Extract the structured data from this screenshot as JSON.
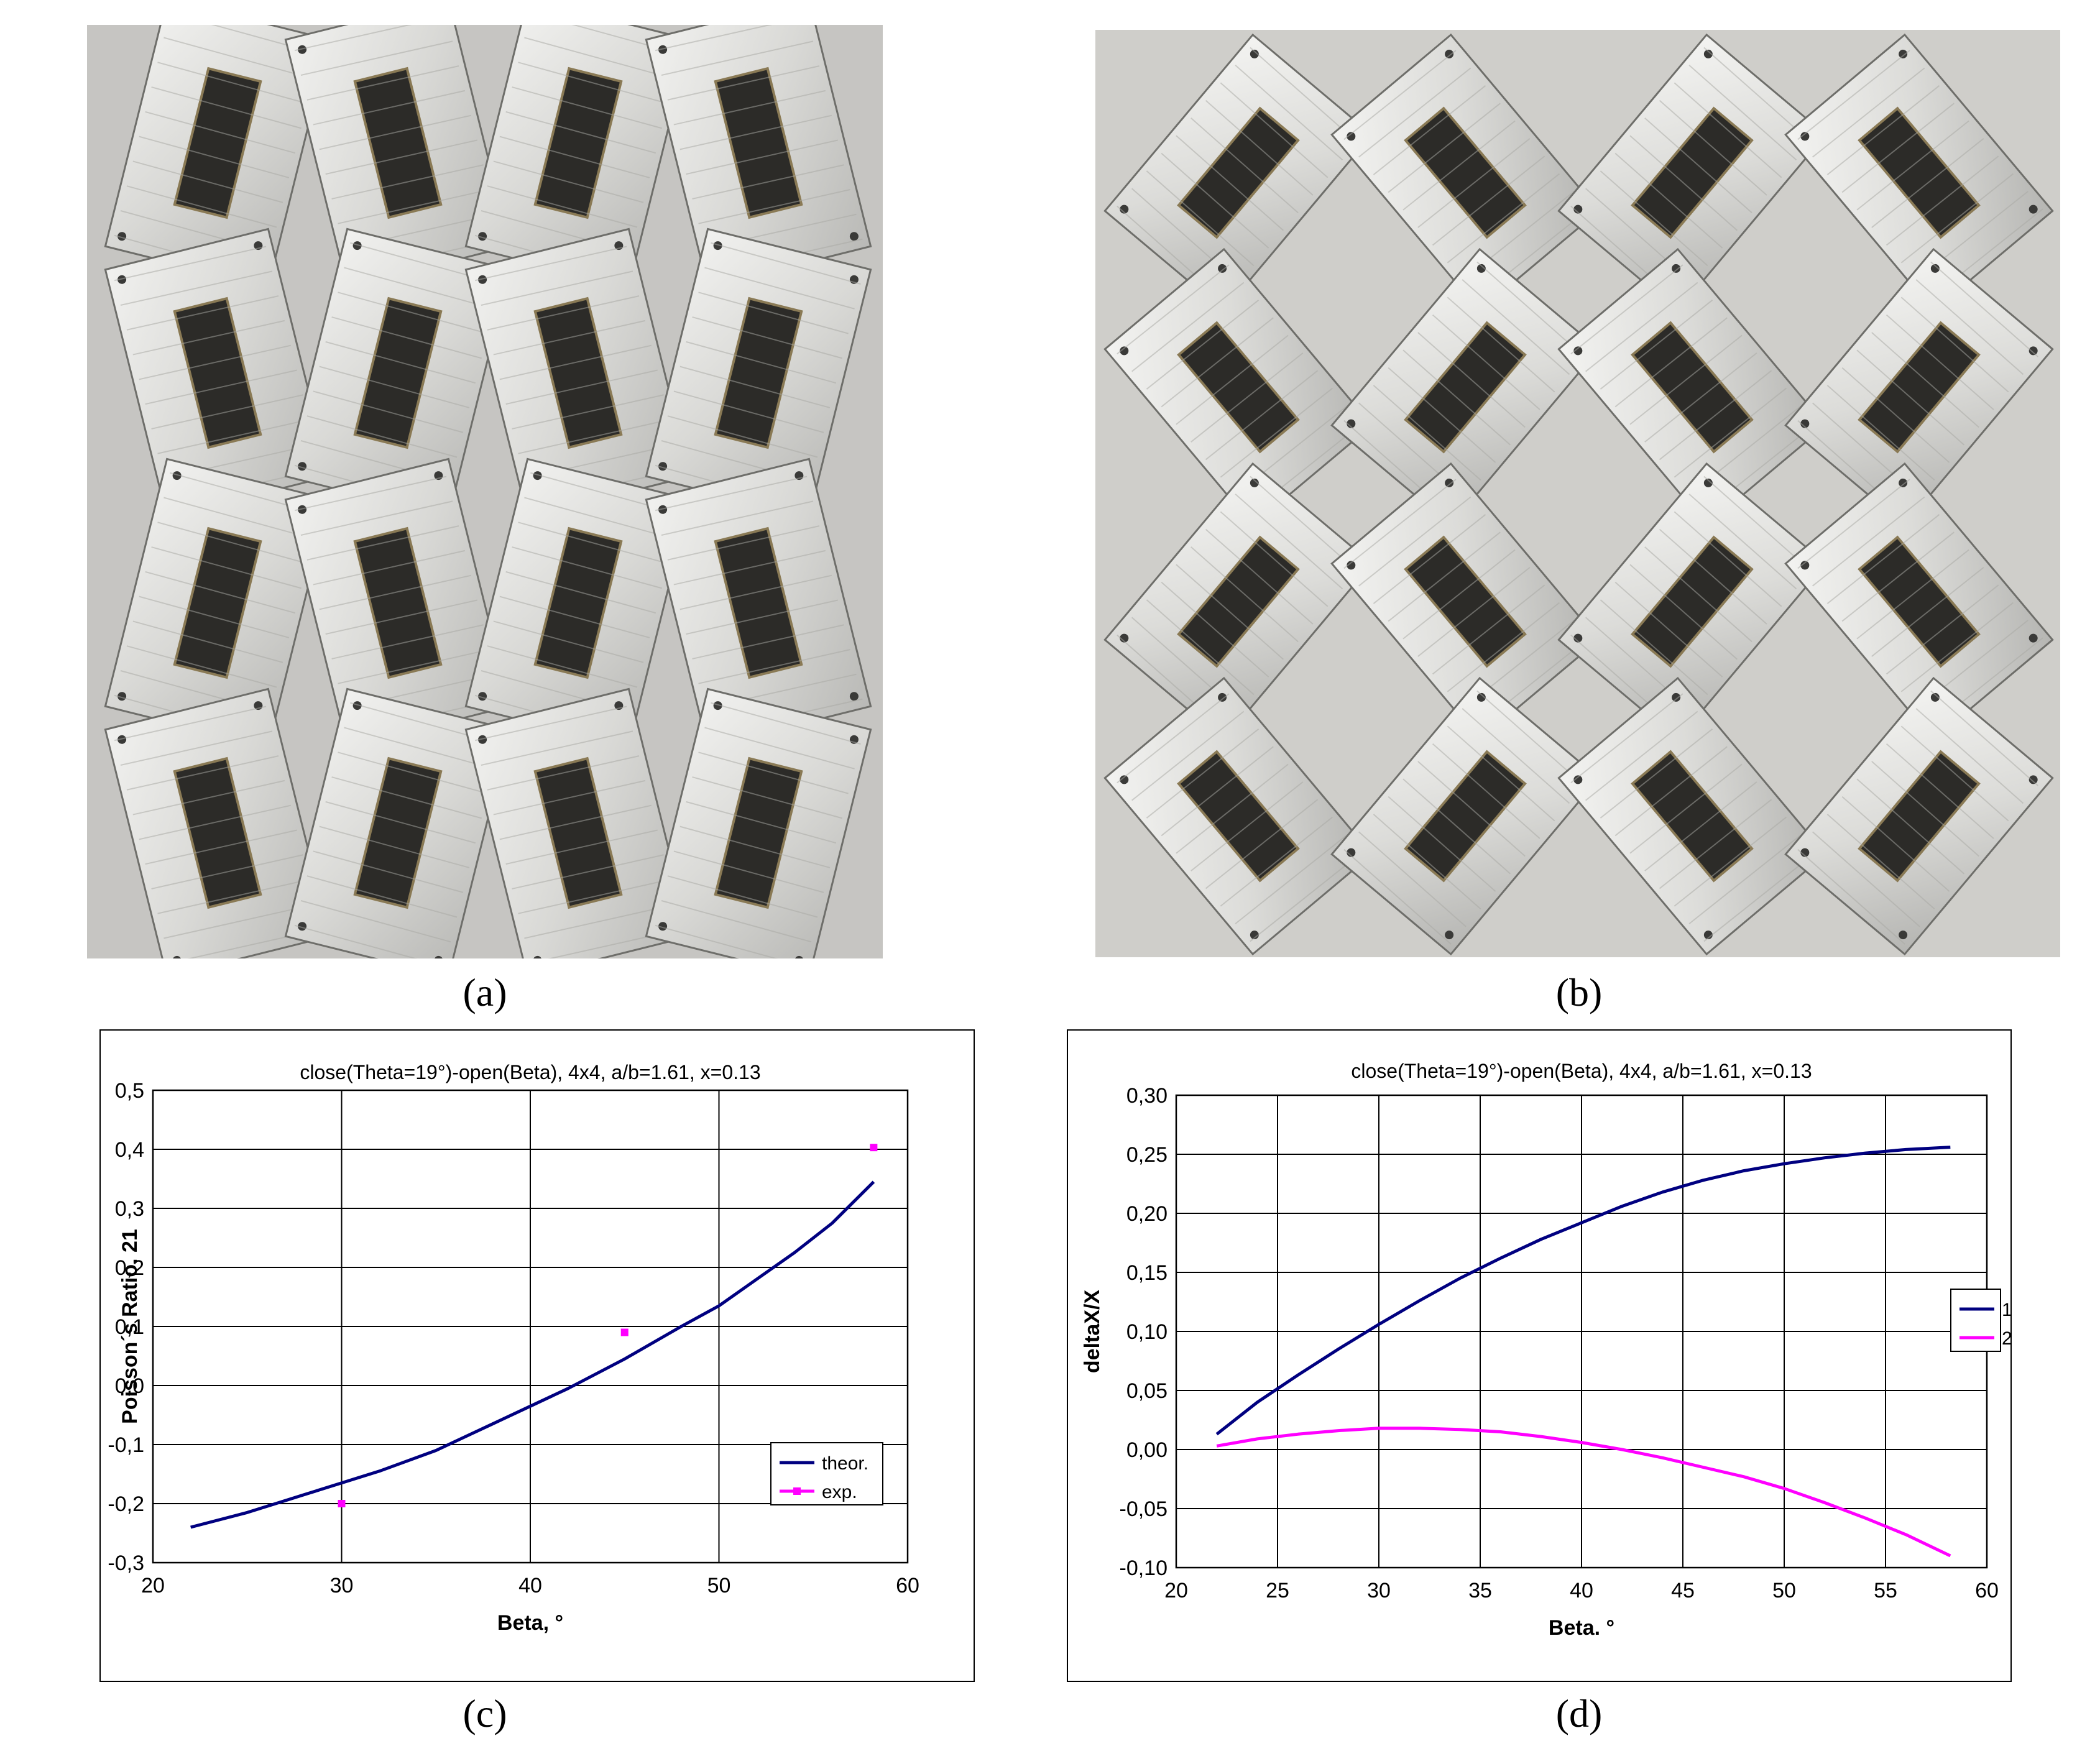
{
  "figure": {
    "labels": {
      "a": "(a)",
      "b": "(b)",
      "c": "(c)",
      "d": "(d)"
    }
  },
  "chart_data": [
    {
      "type": "line",
      "title": "close(Theta=19°)-open(Beta), 4x4, a/b=1.61, x=0.13",
      "xlabel": "Beta, °",
      "ylabel": "Poisson´s Ratio. 21",
      "xlim": [
        20,
        60
      ],
      "ylim": [
        -0.3,
        0.5
      ],
      "xticks": [
        20,
        30,
        40,
        50,
        60
      ],
      "xtick_labels": [
        "20",
        "30",
        "40",
        "50",
        "60"
      ],
      "yticks": [
        -0.3,
        -0.2,
        -0.1,
        0.0,
        0.1,
        0.2,
        0.3,
        0.4,
        0.5
      ],
      "ytick_labels": [
        "-0,3",
        "-0,2",
        "-0,1",
        "0,0",
        "0,1",
        "0,2",
        "0,3",
        "0,4",
        "0,5"
      ],
      "grid": true,
      "legend": "bottom-right",
      "series": [
        {
          "name": "theor.",
          "color": "#000080",
          "style": "line",
          "x": [
            22,
            25,
            28,
            30,
            32,
            35,
            38,
            40,
            42,
            45,
            48,
            50,
            52,
            54,
            56,
            58.2
          ],
          "y": [
            -0.24,
            -0.215,
            -0.185,
            -0.165,
            -0.145,
            -0.11,
            -0.065,
            -0.035,
            -0.005,
            0.045,
            0.1,
            0.135,
            0.18,
            0.225,
            0.275,
            0.345
          ]
        },
        {
          "name": "exp.",
          "color": "#ff00ff",
          "style": "marker",
          "x": [
            30,
            45,
            58.2
          ],
          "y": [
            -0.2,
            0.09,
            0.403
          ]
        }
      ]
    },
    {
      "type": "line",
      "title": "close(Theta=19°)-open(Beta), 4x4, a/b=1.61, x=0.13",
      "xlabel": "Beta. °",
      "ylabel": "deltaX/X",
      "xlim": [
        20,
        60
      ],
      "ylim": [
        -0.1,
        0.3
      ],
      "xticks": [
        20,
        25,
        30,
        35,
        40,
        45,
        50,
        55,
        60
      ],
      "xtick_labels": [
        "20",
        "25",
        "30",
        "35",
        "40",
        "45",
        "50",
        "55",
        "60"
      ],
      "yticks": [
        -0.1,
        -0.05,
        0.0,
        0.05,
        0.1,
        0.15,
        0.2,
        0.25,
        0.3
      ],
      "ytick_labels": [
        "-0,10",
        "-0,05",
        "0,00",
        "0,05",
        "0,10",
        "0,15",
        "0,20",
        "0,25",
        "0,30"
      ],
      "grid": true,
      "legend": "right",
      "series": [
        {
          "name": "1",
          "color": "#000080",
          "style": "line",
          "x": [
            22,
            24,
            26,
            28,
            30,
            32,
            34,
            36,
            38,
            40,
            42,
            44,
            46,
            48,
            50,
            52,
            54,
            56,
            58.2
          ],
          "y": [
            0.013,
            0.04,
            0.063,
            0.085,
            0.106,
            0.126,
            0.145,
            0.162,
            0.178,
            0.192,
            0.206,
            0.218,
            0.228,
            0.236,
            0.242,
            0.247,
            0.251,
            0.254,
            0.256
          ]
        },
        {
          "name": "2",
          "color": "#ff00ff",
          "style": "line",
          "x": [
            22,
            24,
            26,
            28,
            30,
            32,
            34,
            36,
            38,
            40,
            42,
            44,
            46,
            48,
            50,
            52,
            54,
            56,
            58.2
          ],
          "y": [
            0.003,
            0.009,
            0.013,
            0.016,
            0.018,
            0.018,
            0.017,
            0.015,
            0.011,
            0.006,
            0.0,
            -0.007,
            -0.015,
            -0.023,
            -0.033,
            -0.045,
            -0.058,
            -0.072,
            -0.09
          ]
        }
      ]
    }
  ]
}
